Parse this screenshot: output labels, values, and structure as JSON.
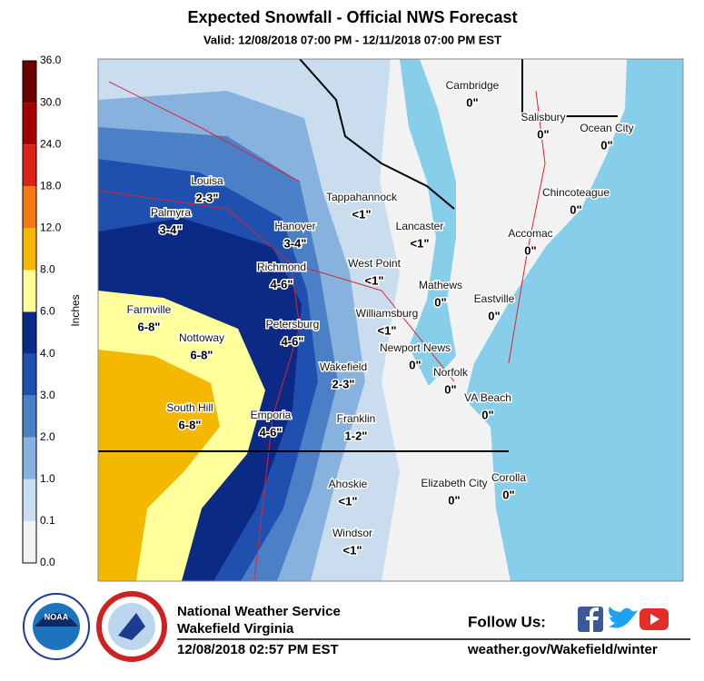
{
  "header": {
    "title": "Expected Snowfall - Official NWS Forecast",
    "subtitle": "Valid: 12/08/2018 07:00 PM - 12/11/2018 07:00 PM EST"
  },
  "legend": {
    "unit": "Inches",
    "ticks": [
      "36.0",
      "30.0",
      "24.0",
      "18.0",
      "12.0",
      "8.0",
      "6.0",
      "4.0",
      "3.0",
      "2.0",
      "1.0",
      "0.1",
      "0.0"
    ],
    "colors": [
      "#6b0000",
      "#a50000",
      "#d8241a",
      "#f27a12",
      "#f5b800",
      "#ffff9c",
      "#0b2a86",
      "#1f50b0",
      "#4b80c6",
      "#87b2dd",
      "#c9ddef",
      "#f2f2f2"
    ]
  },
  "places": [
    {
      "name": "Cambridge",
      "amount": "0\""
    },
    {
      "name": "Salisbury",
      "amount": "0\""
    },
    {
      "name": "Ocean City",
      "amount": "0\""
    },
    {
      "name": "Chincoteague",
      "amount": "0\""
    },
    {
      "name": "Louisa",
      "amount": "2-3\""
    },
    {
      "name": "Palmyra",
      "amount": "3-4\""
    },
    {
      "name": "Tappahannock",
      "amount": "<1\""
    },
    {
      "name": "Lancaster",
      "amount": "<1\""
    },
    {
      "name": "Accomac",
      "amount": "0\""
    },
    {
      "name": "Hanover",
      "amount": "3-4\""
    },
    {
      "name": "Richmond",
      "amount": "4-6\""
    },
    {
      "name": "West Point",
      "amount": "<1\""
    },
    {
      "name": "Mathews",
      "amount": "0\""
    },
    {
      "name": "Eastville",
      "amount": "0\""
    },
    {
      "name": "Farmville",
      "amount": "6-8\""
    },
    {
      "name": "Williamsburg",
      "amount": "<1\""
    },
    {
      "name": "Petersburg",
      "amount": "4-6\""
    },
    {
      "name": "Nottoway",
      "amount": "6-8\""
    },
    {
      "name": "Newport News",
      "amount": "0\""
    },
    {
      "name": "Wakefield",
      "amount": "2-3\""
    },
    {
      "name": "Norfolk",
      "amount": "0\""
    },
    {
      "name": "VA Beach",
      "amount": "0\""
    },
    {
      "name": "South Hill",
      "amount": "6-8\""
    },
    {
      "name": "Emporia",
      "amount": "4-6\""
    },
    {
      "name": "Franklin",
      "amount": "1-2\""
    },
    {
      "name": "Ahoskie",
      "amount": "<1\""
    },
    {
      "name": "Elizabeth City",
      "amount": "0\""
    },
    {
      "name": "Corolla",
      "amount": "0\""
    },
    {
      "name": "Windsor",
      "amount": "<1\""
    }
  ],
  "footer": {
    "noaa": "NOAA",
    "office": "National Weather Service",
    "location": "Wakefield Virginia",
    "issued": "12/08/2018 02:57 PM EST",
    "follow": "Follow Us:",
    "url": "weather.gov/Wakefield/winter"
  }
}
